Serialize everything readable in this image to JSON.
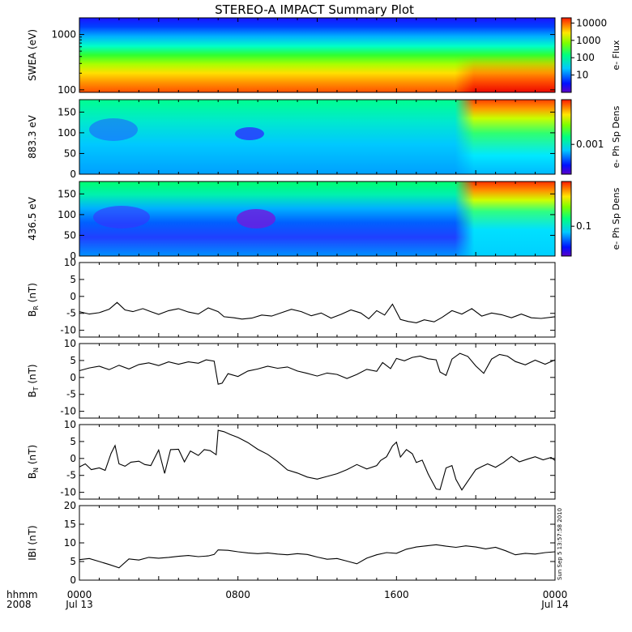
{
  "title": "STEREO-A IMPACT Summary Plot",
  "stamp": "Sun Sep  5 13:57:58 2010",
  "time_axis": {
    "row_labels": [
      "hhmm",
      "2008"
    ],
    "ticks": [
      {
        "hour": 0,
        "top": "0000",
        "bottom": "Jul 13"
      },
      {
        "hour": 8,
        "top": "0800",
        "bottom": ""
      },
      {
        "hour": 16,
        "top": "1600",
        "bottom": ""
      },
      {
        "hour": 24,
        "top": "0000",
        "bottom": "Jul 14"
      }
    ],
    "range_hours": [
      0,
      24
    ]
  },
  "chart_data": [
    {
      "type": "heatmap",
      "ylabel": "SWEA (eV)",
      "yscale": "log",
      "ylim": [
        90,
        2000
      ],
      "yticks": [
        "100",
        "1000"
      ],
      "colorbar": {
        "label": "e- Flux",
        "scale": "log",
        "range": [
          1,
          20000
        ],
        "ticks": [
          "10",
          "100",
          "1000",
          "10000"
        ]
      }
    },
    {
      "type": "heatmap",
      "ylabel": "883.3 eV",
      "ylim": [
        0,
        180
      ],
      "yticks": [
        "0",
        "50",
        "100",
        "150"
      ],
      "colorbar": {
        "label": "e- Ph Sp Dens",
        "scale": "log",
        "ticks": [
          "0.001"
        ]
      }
    },
    {
      "type": "heatmap",
      "ylabel": "436.5 eV",
      "ylim": [
        0,
        180
      ],
      "yticks": [
        "0",
        "50",
        "100",
        "150"
      ],
      "colorbar": {
        "label": "e- Ph Sp Dens",
        "scale": "log",
        "ticks": [
          "0.1"
        ]
      }
    },
    {
      "type": "line",
      "ylabel": "BR (nT)",
      "ylabel_main": "B",
      "ylabel_sub": "R",
      "ylabel_unit": " (nT)",
      "ylim": [
        -12,
        10
      ],
      "yticks": [
        "-10",
        "-5",
        "0",
        "5",
        "10"
      ],
      "x": [
        0,
        0.5,
        1,
        1.5,
        1.9,
        2.3,
        2.7,
        3.2,
        3.6,
        4,
        4.5,
        5,
        5.5,
        6,
        6.5,
        7,
        7.3,
        7.8,
        8.2,
        8.7,
        9.2,
        9.7,
        10.2,
        10.7,
        11.2,
        11.7,
        12.2,
        12.7,
        13.2,
        13.7,
        14.2,
        14.6,
        15,
        15.4,
        15.8,
        16.2,
        16.6,
        17,
        17.4,
        17.9,
        18.3,
        18.8,
        19.3,
        19.8,
        20.3,
        20.8,
        21.3,
        21.8,
        22.3,
        22.8,
        23.3,
        24
      ],
      "y": [
        -4.5,
        -5.2,
        -4.8,
        -3.8,
        -1.8,
        -4,
        -4.5,
        -3.6,
        -4.5,
        -5.3,
        -4.2,
        -3.6,
        -4.6,
        -5.2,
        -3.4,
        -4.5,
        -6,
        -6.3,
        -6.7,
        -6.4,
        -5.5,
        -5.8,
        -4.8,
        -3.8,
        -4.5,
        -5.7,
        -4.9,
        -6.4,
        -5.3,
        -4,
        -4.9,
        -6.6,
        -4.2,
        -5.5,
        -2.3,
        -6.8,
        -7.4,
        -7.8,
        -6.9,
        -7.5,
        -6.2,
        -4.2,
        -5.2,
        -3.6,
        -5.8,
        -4.9,
        -5.4,
        -6.3,
        -5.2,
        -6.3,
        -6.5,
        -6
      ]
    },
    {
      "type": "line",
      "ylabel": "BT (nT)",
      "ylabel_main": "B",
      "ylabel_sub": "T",
      "ylabel_unit": " (nT)",
      "ylim": [
        -12,
        10
      ],
      "yticks": [
        "-10",
        "-5",
        "0",
        "5",
        "10"
      ],
      "x": [
        0,
        0.5,
        1,
        1.5,
        2,
        2.5,
        3,
        3.5,
        4,
        4.5,
        5,
        5.5,
        6,
        6.4,
        6.8,
        7,
        7.2,
        7.5,
        8,
        8.5,
        9,
        9.5,
        10,
        10.5,
        11,
        11.5,
        12,
        12.5,
        13,
        13.5,
        14,
        14.5,
        15,
        15.3,
        15.7,
        16,
        16.4,
        16.8,
        17.2,
        17.6,
        18,
        18.2,
        18.5,
        18.8,
        19.2,
        19.6,
        20,
        20.4,
        20.8,
        21.2,
        21.6,
        22,
        22.5,
        23,
        23.5,
        24
      ],
      "y": [
        2,
        2.8,
        3.3,
        2.3,
        3.6,
        2.5,
        3.8,
        4.3,
        3.5,
        4.6,
        3.9,
        4.6,
        4.2,
        5.2,
        4.8,
        -2,
        -1.7,
        1.1,
        0.3,
        1.9,
        2.5,
        3.3,
        2.7,
        3.1,
        1.9,
        1.2,
        0.4,
        1.3,
        0.9,
        -0.3,
        0.9,
        2.4,
        1.8,
        4.4,
        2.6,
        5.6,
        4.9,
        5.9,
        6.3,
        5.5,
        5.2,
        1.6,
        0.6,
        5.4,
        7.1,
        6.2,
        3.4,
        1.2,
        5.4,
        6.8,
        6.3,
        4.7,
        3.7,
        5.1,
        3.9,
        5.2
      ]
    },
    {
      "type": "line",
      "ylabel": "BN (nT)",
      "ylabel_main": "B",
      "ylabel_sub": "N",
      "ylabel_unit": " (nT)",
      "ylim": [
        -12,
        10
      ],
      "yticks": [
        "-10",
        "-5",
        "0",
        "5",
        "10"
      ],
      "x": [
        0,
        0.3,
        0.6,
        1,
        1.3,
        1.6,
        1.8,
        2,
        2.3,
        2.6,
        3,
        3.3,
        3.6,
        4,
        4.3,
        4.6,
        5,
        5.3,
        5.6,
        6,
        6.3,
        6.6,
        6.9,
        7,
        7.3,
        7.6,
        8,
        8.5,
        9,
        9.5,
        10,
        10.5,
        11,
        11.5,
        12,
        12.5,
        13,
        13.5,
        14,
        14.5,
        15,
        15.2,
        15.5,
        15.8,
        16,
        16.2,
        16.5,
        16.8,
        17,
        17.3,
        17.6,
        18,
        18.2,
        18.5,
        18.8,
        19,
        19.3,
        19.6,
        20,
        20.3,
        20.6,
        21,
        21.4,
        21.8,
        22.2,
        22.6,
        23,
        23.4,
        23.8,
        24
      ],
      "y": [
        -2.5,
        -1.6,
        -3.3,
        -2.8,
        -3.5,
        1.5,
        3.8,
        -1.6,
        -2.3,
        -1.1,
        -0.8,
        -1.8,
        -2.1,
        2.5,
        -4.4,
        2.6,
        2.7,
        -1,
        2.2,
        0.9,
        2.6,
        2.3,
        1.1,
        8.3,
        7.9,
        7.1,
        6.2,
        4.7,
        2.7,
        1.2,
        -0.9,
        -3.4,
        -4.3,
        -5.5,
        -6.1,
        -5.3,
        -4.5,
        -3.3,
        -1.8,
        -3.1,
        -2.1,
        -0.6,
        0.5,
        3.7,
        4.8,
        0.4,
        2.6,
        1.4,
        -1.2,
        -0.5,
        -4.6,
        -9,
        -9.2,
        -2.8,
        -2.1,
        -6.2,
        -9.3,
        -6.7,
        -3.3,
        -2.4,
        -1.6,
        -2.6,
        -1.2,
        0.6,
        -1,
        -0.2,
        0.5,
        -0.4,
        0.3,
        -0.6
      ]
    },
    {
      "type": "line",
      "ylabel": "|B| (nT)",
      "ylabel_main": "IBI",
      "ylabel_sub": "",
      "ylabel_unit": " (nT)",
      "ylim": [
        0,
        20
      ],
      "yticks": [
        "0",
        "5",
        "10",
        "15",
        "20"
      ],
      "x": [
        0,
        0.5,
        1,
        1.5,
        2,
        2.5,
        3,
        3.5,
        4,
        4.5,
        5,
        5.5,
        6,
        6.5,
        6.8,
        7,
        7.5,
        8,
        8.5,
        9,
        9.5,
        10,
        10.5,
        11,
        11.5,
        12,
        12.5,
        13,
        13.5,
        14,
        14.5,
        15,
        15.5,
        16,
        16.5,
        17,
        17.5,
        18,
        18.5,
        19,
        19.5,
        20,
        20.5,
        21,
        21.5,
        22,
        22.5,
        23,
        23.5,
        24
      ],
      "y": [
        5.5,
        5.8,
        5,
        4.2,
        3.3,
        5.7,
        5.4,
        6.1,
        5.9,
        6.1,
        6.4,
        6.6,
        6.3,
        6.5,
        6.9,
        8.1,
        8,
        7.6,
        7.3,
        7.1,
        7.3,
        7,
        6.8,
        7.1,
        6.9,
        6.2,
        5.6,
        5.8,
        5.1,
        4.4,
        5.9,
        6.8,
        7.4,
        7.2,
        8.3,
        8.9,
        9.2,
        9.5,
        9.1,
        8.8,
        9.2,
        8.9,
        8.4,
        8.8,
        7.9,
        6.8,
        7.2,
        7,
        7.4,
        7.6
      ]
    }
  ]
}
